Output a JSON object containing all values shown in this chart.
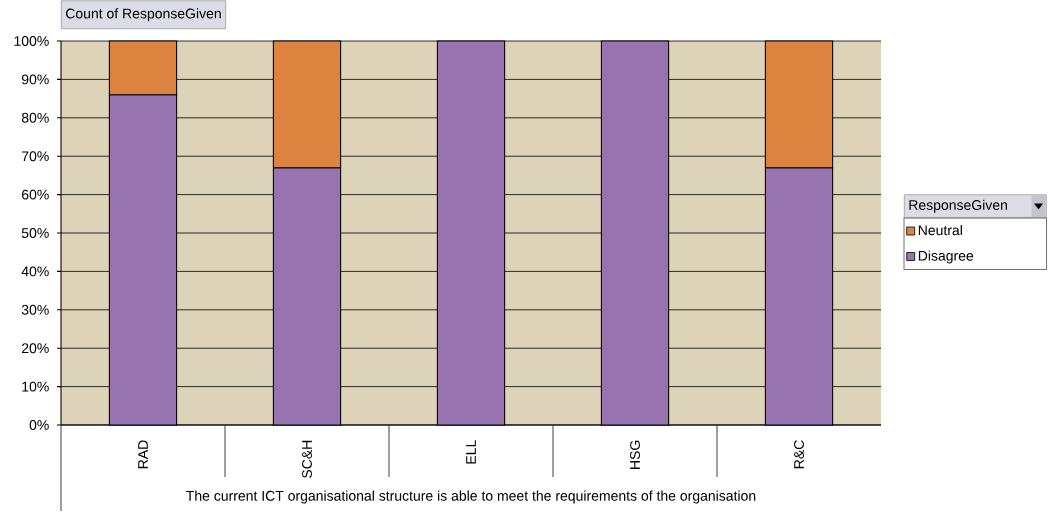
{
  "chart_data": {
    "type": "bar",
    "title": "Count of ResponseGiven",
    "xlabel": "The current ICT organisational structure is able to meet the requirements of the organisation",
    "legend_title": "ResponseGiven",
    "categories": [
      "RAD",
      "SC&H",
      "ELL",
      "HSG",
      "R&C"
    ],
    "series": [
      {
        "name": "Disagree",
        "color": "#9773af",
        "values": [
          86,
          67,
          100,
          100,
          67
        ]
      },
      {
        "name": "Neutral",
        "color": "#db833f",
        "values": [
          14,
          33,
          null,
          null,
          33
        ]
      }
    ],
    "stacked": true,
    "ylim": [
      0,
      100
    ],
    "yticks": [
      {
        "value": 0,
        "label": "0%"
      },
      {
        "value": 10,
        "label": "10%"
      },
      {
        "value": 20,
        "label": "20%"
      },
      {
        "value": 30,
        "label": "30%"
      },
      {
        "value": 40,
        "label": "40%"
      },
      {
        "value": 50,
        "label": "50%"
      },
      {
        "value": 60,
        "label": "60%"
      },
      {
        "value": 70,
        "label": "70%"
      },
      {
        "value": 80,
        "label": "80%"
      },
      {
        "value": 90,
        "label": "90%"
      },
      {
        "value": 100,
        "label": "100%"
      }
    ],
    "grid": "y",
    "legend": "right"
  }
}
